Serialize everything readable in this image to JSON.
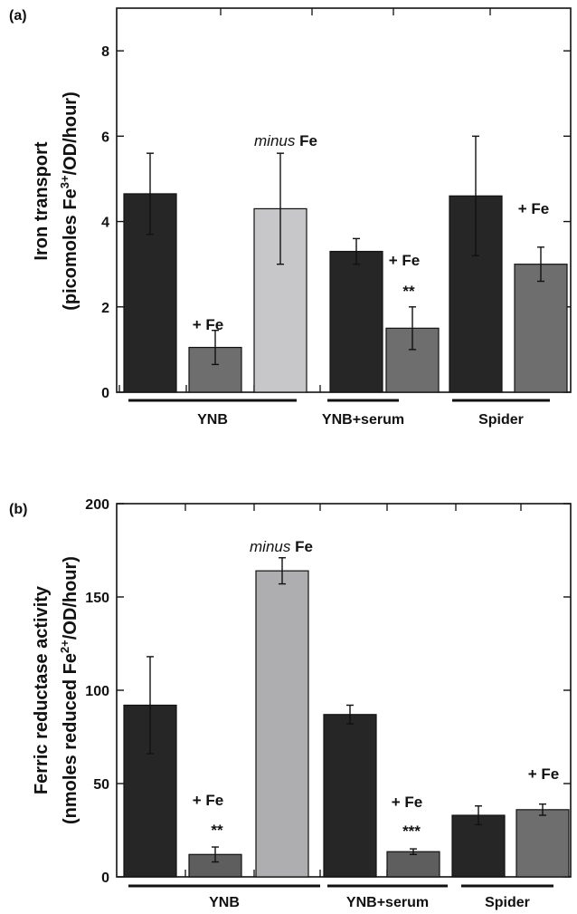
{
  "chart_data": [
    {
      "panel": "(a)",
      "type": "bar",
      "ylabel_line1": "Iron transport",
      "ylabel_line2_pre": "(picomoles Fe",
      "ylabel_line2_sup": "3+",
      "ylabel_line2_post": "/OD/hour)",
      "ylim": [
        0,
        9
      ],
      "yticks": [
        0,
        2,
        4,
        6,
        8
      ],
      "groups": [
        {
          "label": "YNB",
          "bars": [
            0,
            1,
            2
          ]
        },
        {
          "label": "YNB+serum",
          "bars": [
            3,
            4
          ]
        },
        {
          "label": "Spider",
          "bars": [
            5,
            6
          ]
        }
      ],
      "bars": [
        {
          "value": 4.65,
          "error": 0.95,
          "color": "#262626",
          "annotation": ""
        },
        {
          "value": 1.05,
          "error": 0.4,
          "color": "#6e6e6e",
          "annotation": "+ Fe"
        },
        {
          "value": 4.3,
          "error": 1.3,
          "color": "#c7c7c9",
          "annotation": ""
        },
        {
          "value": 3.3,
          "error": 0.3,
          "color": "#262626",
          "annotation": ""
        },
        {
          "value": 1.5,
          "error": 0.5,
          "color": "#6e6e6e",
          "annotation": "+ Fe",
          "significance": "**"
        },
        {
          "value": 4.6,
          "error": 1.4,
          "color": "#262626",
          "annotation": ""
        },
        {
          "value": 3.0,
          "error": 0.4,
          "color": "#6e6e6e",
          "annotation": "+ Fe"
        }
      ],
      "note_italic": "minus",
      "note_bold": "Fe"
    },
    {
      "panel": "(b)",
      "type": "bar",
      "ylabel_line1": "Ferric reductase activity",
      "ylabel_line2_pre": "(nmoles reduced Fe",
      "ylabel_line2_sup": "2+",
      "ylabel_line2_post": "/OD/hour)",
      "ylim": [
        0,
        200
      ],
      "yticks": [
        0,
        50,
        100,
        150,
        200
      ],
      "groups": [
        {
          "label": "YNB",
          "bars": [
            0,
            1,
            2
          ]
        },
        {
          "label": "YNB+serum",
          "bars": [
            3,
            4
          ]
        },
        {
          "label": "Spider",
          "bars": [
            5,
            6
          ]
        }
      ],
      "bars": [
        {
          "value": 92,
          "error": 26,
          "color": "#262626",
          "annotation": ""
        },
        {
          "value": 12,
          "error": 4,
          "color": "#5e5e5e",
          "annotation": "+ Fe",
          "significance": "**"
        },
        {
          "value": 164,
          "error": 7,
          "color": "#aeaeb0",
          "annotation": ""
        },
        {
          "value": 87,
          "error": 5,
          "color": "#262626",
          "annotation": ""
        },
        {
          "value": 13.5,
          "error": 1.5,
          "color": "#5e5e5e",
          "annotation": "+ Fe",
          "significance": "***"
        },
        {
          "value": 33,
          "error": 5,
          "color": "#262626",
          "annotation": ""
        },
        {
          "value": 36,
          "error": 3,
          "color": "#6e6e6e",
          "annotation": "+ Fe"
        }
      ],
      "note_italic": "minus",
      "note_bold": "Fe"
    }
  ]
}
